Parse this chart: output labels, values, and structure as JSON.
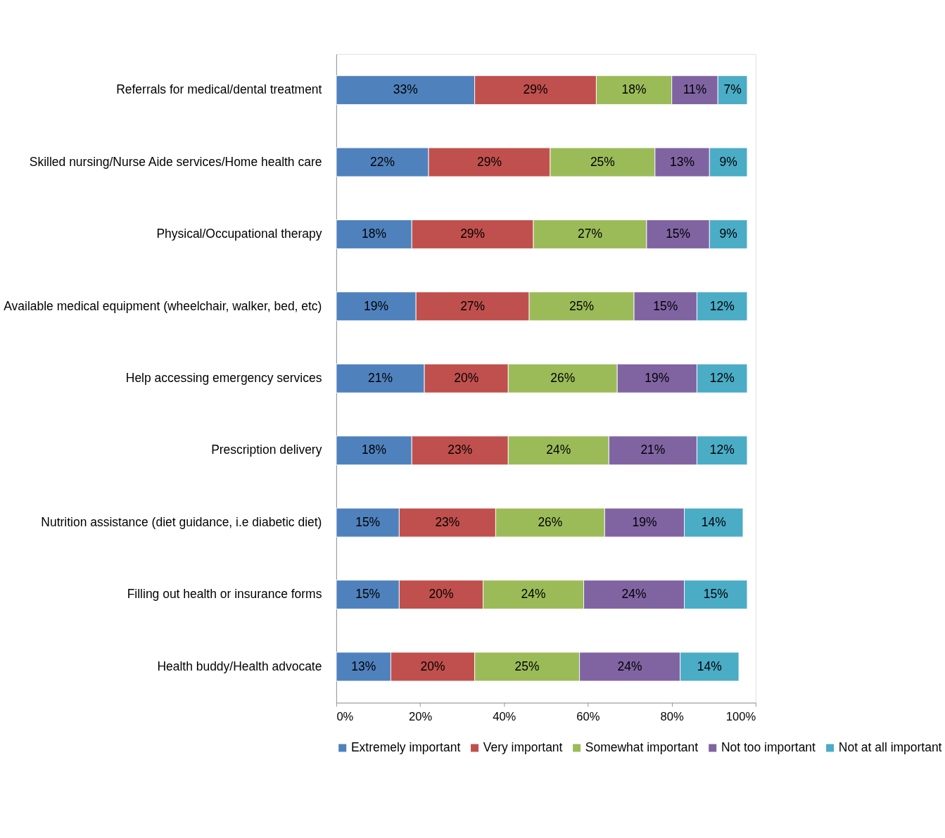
{
  "chart_data": {
    "type": "bar",
    "orientation": "horizontal",
    "stacked": true,
    "categories": [
      "Referrals for medical/dental treatment",
      "Skilled nursing/Nurse Aide services/Home health care",
      "Physical/Occupational therapy",
      "Available medical equipment (wheelchair, walker, bed, etc)",
      "Help accessing emergency services",
      "Prescription delivery",
      "Nutrition assistance (diet guidance, i.e diabetic diet)",
      "Filling out health or insurance forms",
      "Health buddy/Health advocate"
    ],
    "series": [
      {
        "name": "Extremely important",
        "color": "#4f81bd",
        "values": [
          33,
          22,
          18,
          19,
          21,
          18,
          15,
          15,
          13
        ],
        "value_labels": [
          "33%",
          "22%",
          "18%",
          "19%",
          "21%",
          "18%",
          "15%",
          "15%",
          "13%"
        ]
      },
      {
        "name": "Very important",
        "color": "#c0504d",
        "values": [
          29,
          29,
          29,
          27,
          20,
          23,
          23,
          20,
          20
        ],
        "value_labels": [
          "29%",
          "29%",
          "29%",
          "27%",
          "20%",
          "23%",
          "23%",
          "20%",
          "20%"
        ]
      },
      {
        "name": "Somewhat important",
        "color": "#9bbb59",
        "values": [
          18,
          25,
          27,
          25,
          26,
          24,
          26,
          24,
          25
        ],
        "value_labels": [
          "18%",
          "25%",
          "27%",
          "25%",
          "26%",
          "24%",
          "26%",
          "24%",
          "25%"
        ]
      },
      {
        "name": "Not too important",
        "color": "#8064a2",
        "values": [
          11,
          13,
          15,
          15,
          19,
          21,
          19,
          24,
          24
        ],
        "value_labels": [
          "11%",
          "13%",
          "15%",
          "15%",
          "19%",
          "21%",
          "19%",
          "24%",
          "24%"
        ]
      },
      {
        "name": "Not at all important",
        "color": "#4bacc6",
        "values": [
          7,
          9,
          9,
          12,
          12,
          12,
          14,
          15,
          14
        ],
        "value_labels": [
          "7%",
          "9%",
          "9%",
          "12%",
          "12%",
          "12%",
          "14%",
          "15%",
          "14%"
        ]
      }
    ],
    "xlim": [
      0,
      100
    ],
    "xticks": [
      {
        "value": 0,
        "label": "0%"
      },
      {
        "value": 20,
        "label": "20%"
      },
      {
        "value": 40,
        "label": "40%"
      },
      {
        "value": 60,
        "label": "60%"
      },
      {
        "value": 80,
        "label": "80%"
      },
      {
        "value": 100,
        "label": "100%"
      }
    ],
    "grid": false,
    "legend": "bottom"
  }
}
